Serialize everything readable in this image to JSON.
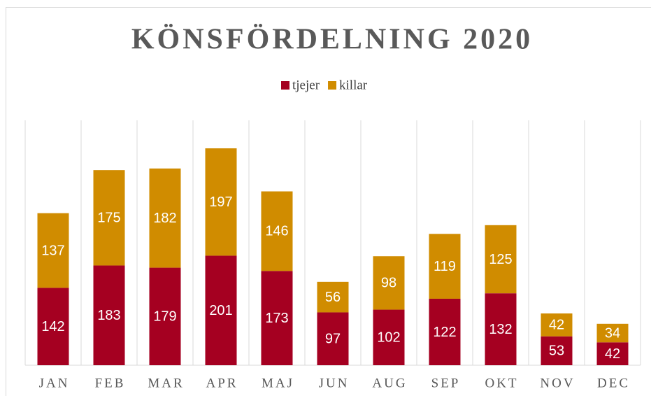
{
  "chart_data": {
    "type": "bar",
    "stacked": true,
    "title": "KÖNSFÖRDELNING 2020",
    "categories": [
      "JAN",
      "FEB",
      "MAR",
      "APR",
      "MAJ",
      "JUN",
      "AUG",
      "SEP",
      "OKT",
      "NOV",
      "DEC"
    ],
    "series": [
      {
        "name": "tjejer",
        "color": "#a50021",
        "values": [
          142,
          183,
          179,
          201,
          173,
          97,
          102,
          122,
          132,
          53,
          42
        ]
      },
      {
        "name": "killar",
        "color": "#d08c00",
        "values": [
          137,
          175,
          182,
          197,
          146,
          56,
          98,
          119,
          125,
          42,
          34
        ]
      }
    ],
    "legend": "top",
    "grid": true
  }
}
